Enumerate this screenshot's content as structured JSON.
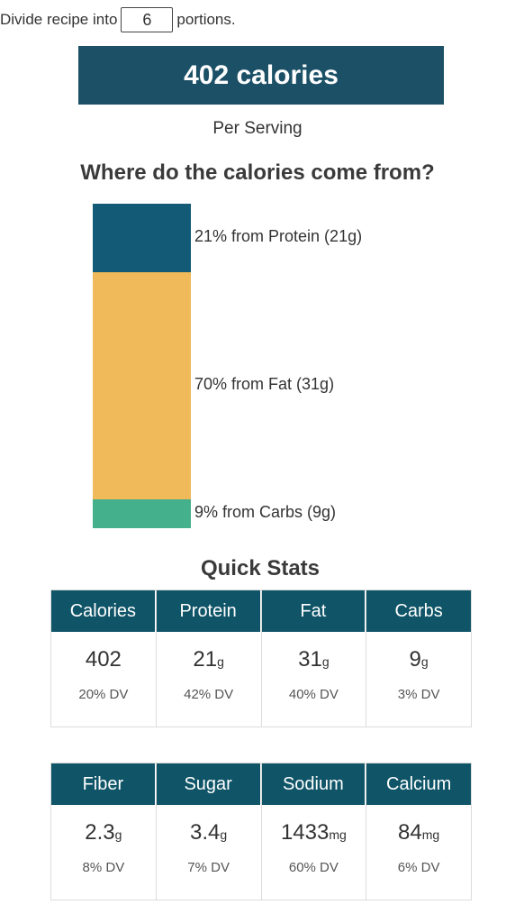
{
  "portions": {
    "prefix": "Divide recipe into",
    "value": "6",
    "suffix": "portions."
  },
  "calories_banner": "402 calories",
  "per_serving": "Per Serving",
  "where_title": "Where do the calories come from?",
  "chart_data": {
    "type": "bar",
    "orientation": "stacked-vertical",
    "categories": [
      "Protein",
      "Fat",
      "Carbs"
    ],
    "values": [
      21,
      70,
      9
    ],
    "unit": "%",
    "labels": [
      "21% from Protein (21g)",
      "70% from Fat (31g)",
      "9% from Carbs (9g)"
    ],
    "colors": [
      "#135a76",
      "#f0b959",
      "#45b08c"
    ]
  },
  "quick_stats_title": "Quick Stats",
  "stats_row1": [
    {
      "name": "Calories",
      "value": "402",
      "unit": "",
      "dv": "20% DV"
    },
    {
      "name": "Protein",
      "value": "21",
      "unit": "g",
      "dv": "42% DV"
    },
    {
      "name": "Fat",
      "value": "31",
      "unit": "g",
      "dv": "40% DV"
    },
    {
      "name": "Carbs",
      "value": "9",
      "unit": "g",
      "dv": "3% DV"
    }
  ],
  "stats_row2": [
    {
      "name": "Fiber",
      "value": "2.3",
      "unit": "g",
      "dv": "8% DV"
    },
    {
      "name": "Sugar",
      "value": "3.4",
      "unit": "g",
      "dv": "7% DV"
    },
    {
      "name": "Sodium",
      "value": "1433",
      "unit": "mg",
      "dv": "60% DV"
    },
    {
      "name": "Calcium",
      "value": "84",
      "unit": "mg",
      "dv": "6% DV"
    }
  ]
}
